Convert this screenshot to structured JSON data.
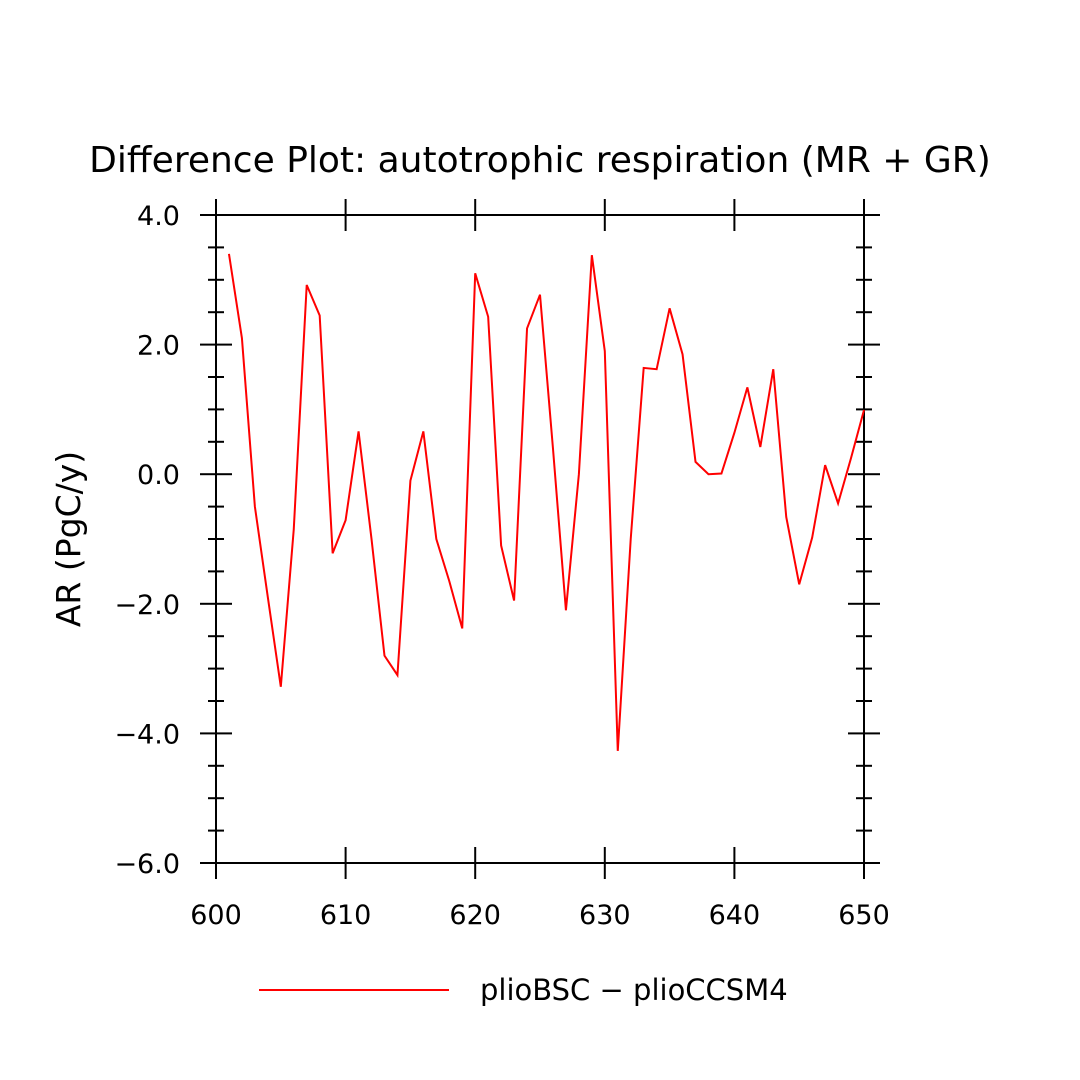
{
  "chart_data": {
    "type": "line",
    "title": "Difference Plot: autotrophic respiration (MR + GR)",
    "xlabel": "",
    "ylabel": "AR  (PgC/y)",
    "xlim": [
      600,
      650
    ],
    "ylim": [
      -6.0,
      4.0
    ],
    "x_ticks": [
      600,
      610,
      620,
      630,
      640,
      650
    ],
    "x_tick_labels": [
      "600",
      "610",
      "620",
      "630",
      "640",
      "650"
    ],
    "x_minor_step": 0,
    "y_ticks": [
      -6.0,
      -4.0,
      -2.0,
      0.0,
      2.0,
      4.0
    ],
    "y_tick_labels": [
      "−6.0",
      "−4.0",
      "−2.0",
      "0.0",
      "2.0",
      "4.0"
    ],
    "y_minor_step": 0.5,
    "grid": false,
    "legend_position": "bottom",
    "series": [
      {
        "name": "plioBSC − plioCCSM4",
        "color": "#ff0000",
        "x": [
          601,
          602,
          603,
          604,
          605,
          606,
          607,
          608,
          609,
          610,
          611,
          612,
          613,
          614,
          615,
          616,
          617,
          618,
          619,
          620,
          621,
          622,
          623,
          624,
          625,
          626,
          627,
          628,
          629,
          630,
          631,
          632,
          633,
          634,
          635,
          636,
          637,
          638,
          639,
          640,
          641,
          642,
          643,
          644,
          645,
          646,
          647,
          648,
          649,
          650
        ],
        "y": [
          3.4,
          2.1,
          -0.5,
          -1.9,
          -3.28,
          -0.85,
          2.92,
          2.45,
          -1.22,
          -0.71,
          0.66,
          -1.0,
          -2.8,
          -3.1,
          -0.1,
          0.66,
          -1.0,
          -1.65,
          -2.38,
          3.1,
          2.43,
          -1.1,
          -1.95,
          2.25,
          2.77,
          0.4,
          -2.1,
          0.0,
          3.38,
          1.9,
          -4.27,
          -1.0,
          1.64,
          1.62,
          2.56,
          1.85,
          0.19,
          0.0,
          0.01,
          0.64,
          1.34,
          0.42,
          1.62,
          -0.66,
          -1.7,
          -0.98,
          0.14,
          -0.45,
          0.25,
          0.99
        ]
      }
    ]
  }
}
